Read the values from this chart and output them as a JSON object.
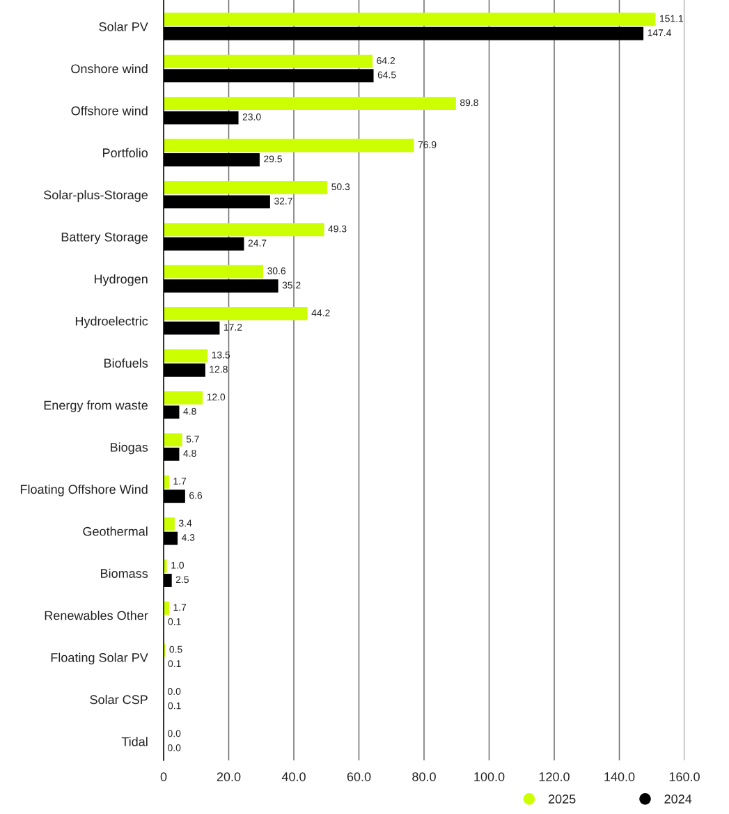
{
  "chart_data": {
    "type": "bar",
    "orientation": "horizontal",
    "categories": [
      "Solar PV",
      "Onshore wind",
      "Offshore wind",
      "Portfolio",
      "Solar-plus-Storage",
      "Battery Storage",
      "Hydrogen",
      "Hydroelectric",
      "Biofuels",
      "Energy from waste",
      "Biogas",
      "Floating Offshore Wind",
      "Geothermal",
      "Biomass",
      "Renewables Other",
      "Floating Solar PV",
      "Solar CSP",
      "Tidal"
    ],
    "series": [
      {
        "name": "2025",
        "color": "#ccff00",
        "values": [
          151.1,
          64.2,
          89.8,
          76.9,
          50.3,
          49.3,
          30.6,
          44.2,
          13.5,
          12.0,
          5.7,
          1.7,
          3.4,
          1.0,
          1.7,
          0.5,
          0.0,
          0.0
        ],
        "value_labels": [
          "151.1",
          "64.2",
          "89.8",
          "76.9",
          "50.3",
          "49.3",
          "30.6",
          "44.2",
          "13.5",
          "12.0",
          "5.7",
          "1.7",
          "3.4",
          "1.0",
          "1.7",
          "0.5",
          "0.0",
          "0.0"
        ]
      },
      {
        "name": "2024",
        "color": "#000000",
        "values": [
          147.4,
          64.5,
          23.0,
          29.5,
          32.7,
          24.7,
          35.2,
          17.2,
          12.8,
          4.8,
          4.8,
          6.6,
          4.3,
          2.5,
          0.1,
          0.1,
          0.1,
          0.0
        ],
        "value_labels": [
          "147.4",
          "64.5",
          "23.0",
          "29.5",
          "32.7",
          "24.7",
          "35.2",
          "17.2",
          "12.8",
          "4.8",
          "4.8",
          "6.6",
          "4.3",
          "2.5",
          "0.1",
          "0.1",
          "0.1",
          "0.0"
        ]
      }
    ],
    "xlim": [
      0,
      160
    ],
    "xticks": [
      0,
      {
        "value": 20,
        "label": "20.0"
      },
      {
        "value": 40,
        "label": "40.0"
      },
      {
        "value": 60,
        "label": "60.0"
      },
      {
        "value": 80,
        "label": "80.0"
      },
      {
        "value": 100,
        "label": "100.0"
      },
      {
        "value": 120,
        "label": "120.0"
      },
      {
        "value": 140,
        "label": "140.0"
      },
      {
        "value": 160,
        "label": "160.0"
      }
    ],
    "grid": "x",
    "legend": "bottom right"
  }
}
